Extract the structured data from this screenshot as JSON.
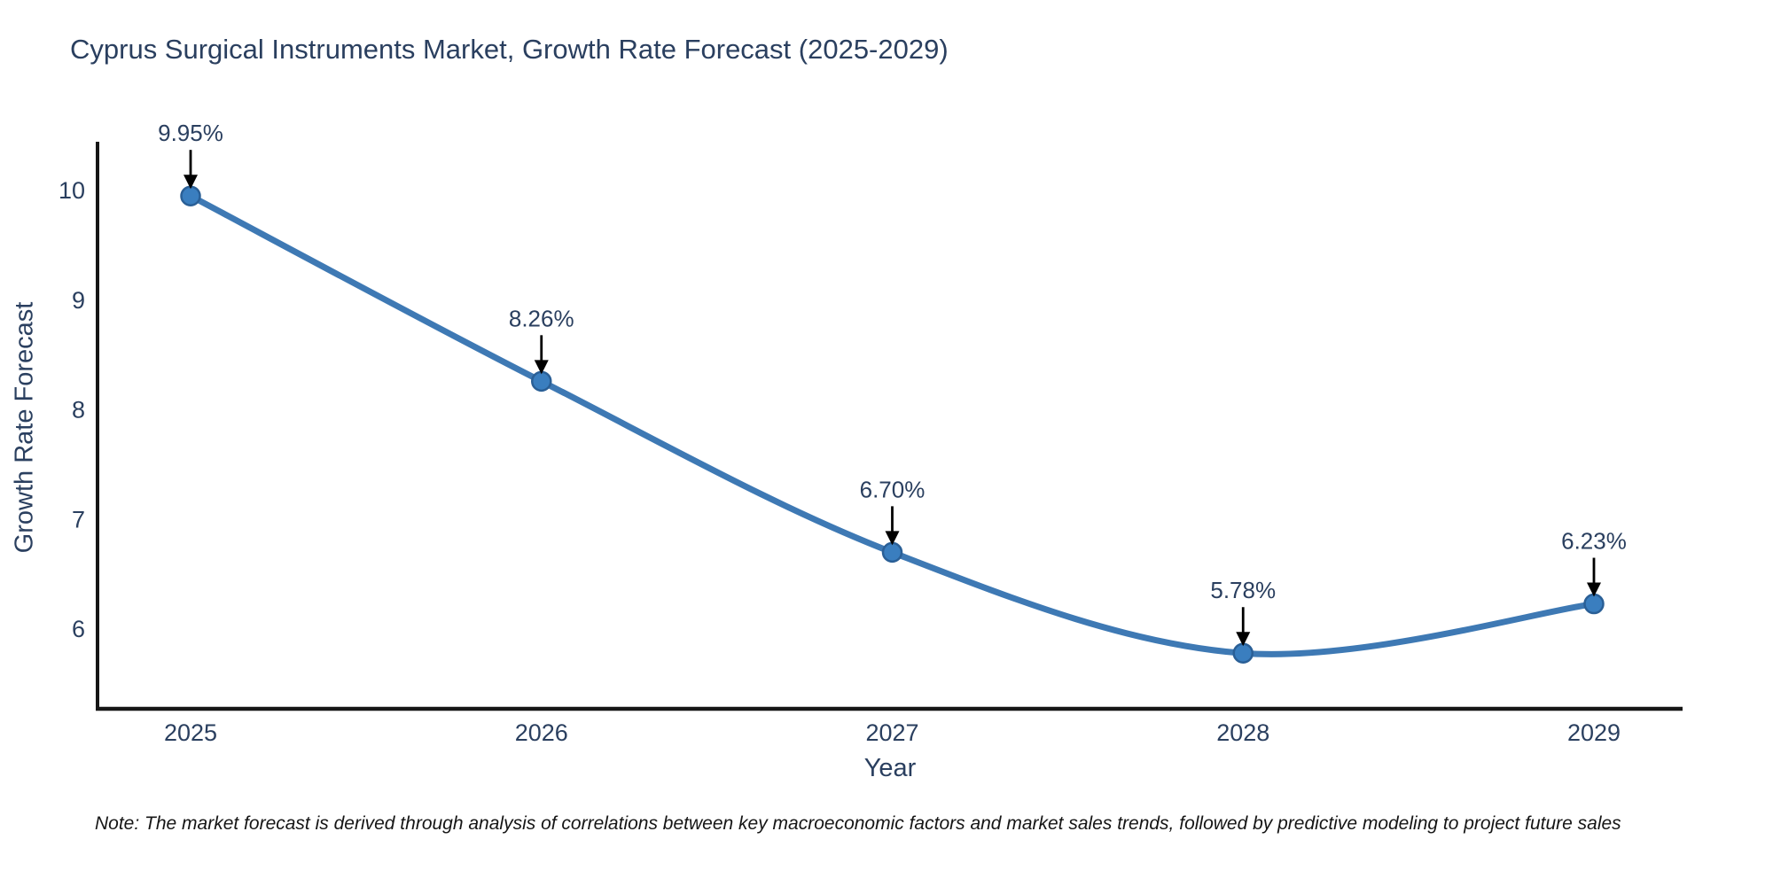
{
  "title": "Cyprus Surgical Instruments Market, Growth Rate Forecast (2025-2029)",
  "note": "Note: The market forecast is derived through analysis of correlations between key macroeconomic factors and market sales trends, followed by predictive modeling to project future sales",
  "chart_data": {
    "type": "line",
    "title": "Cyprus Surgical Instruments Market, Growth Rate Forecast (2025-2029)",
    "categories": [
      "2025",
      "2026",
      "2027",
      "2028",
      "2029"
    ],
    "series": [
      {
        "name": "Growth Rate Forecast",
        "values": [
          9.95,
          8.26,
          6.7,
          5.78,
          6.23
        ]
      }
    ],
    "point_labels": [
      "9.95%",
      "8.26%",
      "6.70%",
      "5.78%",
      "6.23%"
    ],
    "xlabel": "Year",
    "ylabel": "Growth Rate Forecast",
    "yticks": [
      6,
      7,
      8,
      9,
      10
    ],
    "ylim": [
      5.27,
      10.45
    ],
    "line_shape": "spline",
    "grid": false,
    "legend": "none",
    "colors": {
      "line": "#3e79b4",
      "marker_fill": "#3a7ebf",
      "marker_outline": "#2a5f96",
      "axis_line": "#161616",
      "tick_text": "#2a3f5f",
      "annotation_text": "#2a3f5f",
      "annotation_arrow": "#000000"
    }
  }
}
